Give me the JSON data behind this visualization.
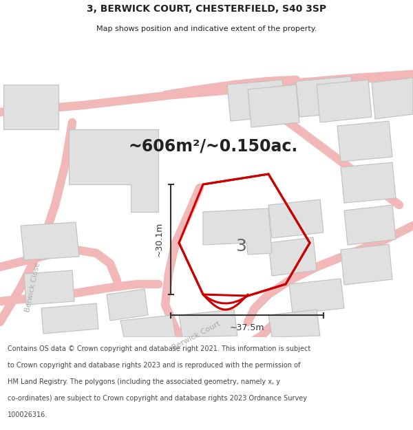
{
  "title_line1": "3, BERWICK COURT, CHESTERFIELD, S40 3SP",
  "title_line2": "Map shows position and indicative extent of the property.",
  "area_text": "~606m²/~0.150ac.",
  "label_number": "3",
  "dim_horizontal": "~37.5m",
  "dim_vertical": "~30.1m",
  "footer_lines": [
    "Contains OS data © Crown copyright and database right 2021. This information is subject",
    "to Crown copyright and database rights 2023 and is reproduced with the permission of",
    "HM Land Registry. The polygons (including the associated geometry, namely x, y",
    "co-ordinates) are subject to Crown copyright and database rights 2023 Ordnance Survey",
    "100026316."
  ],
  "bg_color": "#ffffff",
  "road_color": "#f2b8b8",
  "road_lw": 1.2,
  "building_fill": "#e0e0e0",
  "building_edge": "#c0c0c0",
  "highlight_color": "#cc0000",
  "dim_color": "#333333",
  "text_color": "#222222",
  "road_label_color": "#aaaaaa",
  "footer_color": "#444444",
  "title_fs": 10,
  "subtitle_fs": 8,
  "area_fs": 17,
  "number_fs": 18,
  "dim_fs": 9,
  "road_label_fs": 8,
  "footer_fs": 7
}
